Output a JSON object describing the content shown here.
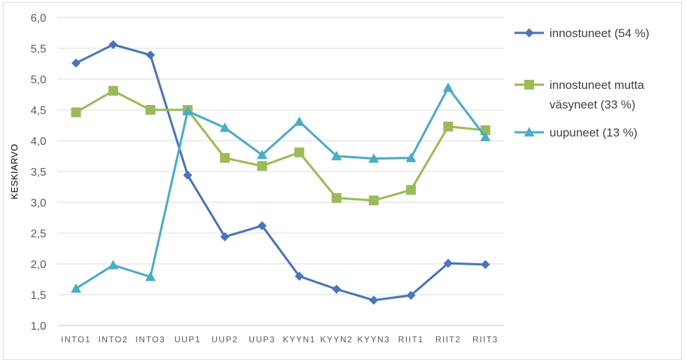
{
  "chart_data": {
    "type": "line",
    "ylabel": "KESKIARVO",
    "ylim": [
      1.0,
      6.0
    ],
    "ytick_step": 0.5,
    "ytick_labels": [
      "1,0",
      "1,5",
      "2,0",
      "2,5",
      "3,0",
      "3,5",
      "4,0",
      "4,5",
      "5,0",
      "5,5",
      "6,0"
    ],
    "categories": [
      "INTO1",
      "INTO2",
      "INTO3",
      "UUP1",
      "UUP2",
      "UUP3",
      "KYYN1",
      "KYYN2",
      "KYYN3",
      "RIIT1",
      "RIIT2",
      "RIIT3"
    ],
    "category_labels": [
      "INTO1",
      "INTO2",
      "INTO3",
      "UUP1",
      "UUP2",
      "UUP3",
      "KYYN1",
      "KYYN2",
      "KYYN3",
      "RIIT1",
      "RIIT2",
      "RIIT3"
    ],
    "grid": true,
    "legend_position": "right",
    "series": [
      {
        "name": "innostuneet (54 %)",
        "legend_lines": [
          "innostuneet (54 %)"
        ],
        "color": "#4a76b8",
        "marker": "diamond",
        "values": [
          5.26,
          5.56,
          5.39,
          3.44,
          2.44,
          2.62,
          1.8,
          1.59,
          1.41,
          1.49,
          2.01,
          1.99
        ]
      },
      {
        "name": "innostuneet mutta väsyneet (33 %)",
        "legend_lines": [
          "innostuneet mutta",
          "väsyneet (33 %)"
        ],
        "color": "#9bbb59",
        "marker": "square",
        "values": [
          4.46,
          4.81,
          4.5,
          4.5,
          3.72,
          3.59,
          3.81,
          3.07,
          3.03,
          3.2,
          4.23,
          4.17
        ]
      },
      {
        "name": "uupuneet (13 %)",
        "legend_lines": [
          "uupuneet (13 %)"
        ],
        "color": "#4bacc6",
        "marker": "triangle",
        "values": [
          1.6,
          1.98,
          1.79,
          4.48,
          4.21,
          3.77,
          4.31,
          3.75,
          3.71,
          3.72,
          4.86,
          4.06
        ]
      }
    ]
  }
}
